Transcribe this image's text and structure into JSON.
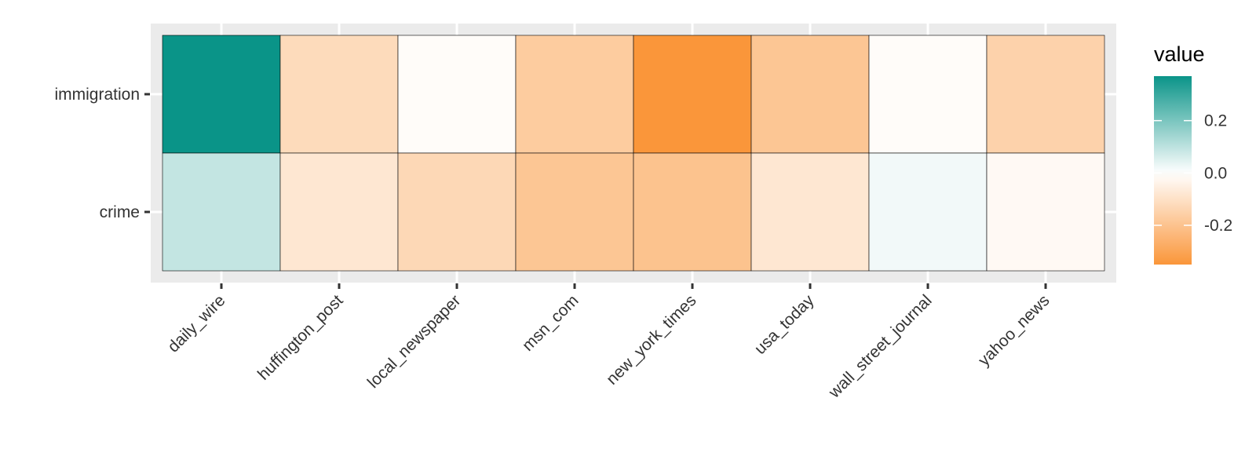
{
  "chart_data": {
    "type": "heatmap",
    "title": "",
    "xlabel": "",
    "ylabel": "",
    "x_categories": [
      "daily_wire",
      "huffington_post",
      "local_newspaper",
      "msn_com",
      "new_york_times",
      "usa_today",
      "wall_street_journal",
      "yahoo_news"
    ],
    "y_categories": [
      "immigration",
      "crime"
    ],
    "values": [
      [
        0.37,
        -0.12,
        -0.01,
        -0.17,
        -0.35,
        -0.19,
        -0.01,
        -0.15
      ],
      [
        0.09,
        -0.08,
        -0.13,
        -0.19,
        -0.2,
        -0.08,
        0.02,
        -0.02
      ]
    ],
    "legend": {
      "title": "value",
      "ticks": [
        0.2,
        0.0,
        -0.2
      ],
      "tick_labels": [
        "0.2",
        "0.0",
        "-0.2"
      ],
      "min": -0.35,
      "max": 0.37,
      "position": "right"
    },
    "colors": {
      "high": "#0a9488",
      "mid": "#ffffff",
      "low": "#fa963a",
      "panel_background": "#ebebeb",
      "grid": "#ffffff",
      "tile_border": "#000000"
    },
    "grid": true
  }
}
